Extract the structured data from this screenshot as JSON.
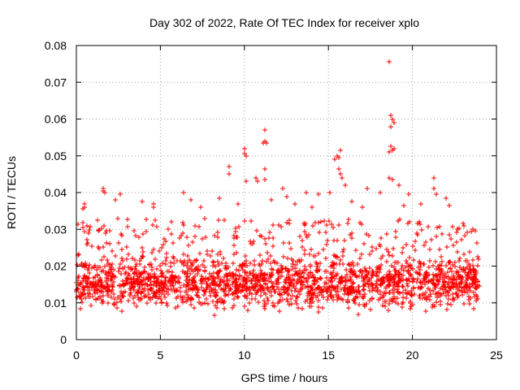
{
  "chart_data": {
    "type": "scatter",
    "title": "Day 302 of 2022, Rate Of TEC Index for receiver xplo",
    "xlabel": "GPS time / hours",
    "ylabel": "ROTI / TECUs",
    "xlim": [
      0,
      25
    ],
    "ylim": [
      0,
      0.08
    ],
    "x_ticks": [
      0,
      5,
      10,
      15,
      20,
      25
    ],
    "y_ticks": [
      0,
      0.01,
      0.02,
      0.03,
      0.04,
      0.05,
      0.06,
      0.07,
      0.08
    ],
    "x_tick_labels": [
      "0",
      "5",
      "10",
      "15",
      "20",
      "25"
    ],
    "y_tick_labels": [
      "0",
      "0.01",
      "0.02",
      "0.03",
      "0.04",
      "0.05",
      "0.06",
      "0.07",
      "0.08"
    ],
    "grid": true,
    "marker": "+",
    "marker_color": "#ff0000",
    "data_extent_x": [
      0,
      24
    ],
    "bulk_range_y": [
      0.006,
      0.025
    ],
    "series": [
      {
        "name": "ROTI",
        "points": [
          [
            18.6,
            0.0755
          ],
          [
            18.7,
            0.061
          ],
          [
            18.8,
            0.06
          ],
          [
            18.9,
            0.059
          ],
          [
            18.7,
            0.058
          ],
          [
            18.7,
            0.0525
          ],
          [
            18.8,
            0.0515
          ],
          [
            18.6,
            0.051
          ],
          [
            18.9,
            0.052
          ],
          [
            11.2,
            0.057
          ],
          [
            11.2,
            0.054
          ],
          [
            11.1,
            0.0535
          ],
          [
            11.3,
            0.0535
          ],
          [
            10.0,
            0.052
          ],
          [
            10.1,
            0.05
          ],
          [
            10.0,
            0.0505
          ],
          [
            11.2,
            0.0465
          ],
          [
            15.5,
            0.05
          ],
          [
            15.6,
            0.0495
          ],
          [
            15.4,
            0.049
          ],
          [
            15.7,
            0.0515
          ],
          [
            15.6,
            0.0465
          ],
          [
            15.7,
            0.045
          ],
          [
            15.8,
            0.044
          ],
          [
            9.1,
            0.047
          ],
          [
            9.1,
            0.045
          ],
          [
            10.7,
            0.044
          ],
          [
            10.8,
            0.043
          ],
          [
            10.1,
            0.043
          ],
          [
            11.2,
            0.0435
          ],
          [
            18.6,
            0.044
          ],
          [
            18.8,
            0.0435
          ],
          [
            19.2,
            0.042
          ],
          [
            21.3,
            0.044
          ],
          [
            1.6,
            0.041
          ],
          [
            1.6,
            0.0405
          ],
          [
            1.7,
            0.04
          ],
          [
            2.6,
            0.0395
          ],
          [
            8.5,
            0.0385
          ],
          [
            12.3,
            0.041
          ],
          [
            12.5,
            0.039
          ],
          [
            13.7,
            0.04
          ],
          [
            14.4,
            0.0395
          ],
          [
            15.1,
            0.04
          ],
          [
            16.0,
            0.042
          ],
          [
            17.3,
            0.041
          ],
          [
            18.1,
            0.04
          ],
          [
            19.8,
            0.0395
          ],
          [
            21.3,
            0.041
          ],
          [
            21.4,
            0.0395
          ],
          [
            0.5,
            0.037
          ],
          [
            0.5,
            0.036
          ],
          [
            0.4,
            0.0355
          ],
          [
            2.3,
            0.038
          ],
          [
            3.9,
            0.0375
          ],
          [
            4.6,
            0.037
          ],
          [
            4.6,
            0.036
          ],
          [
            6.4,
            0.04
          ],
          [
            6.8,
            0.038
          ],
          [
            7.4,
            0.036
          ],
          [
            9.6,
            0.037
          ],
          [
            11.6,
            0.038
          ],
          [
            13.0,
            0.037
          ],
          [
            14.0,
            0.036
          ],
          [
            16.4,
            0.0375
          ],
          [
            17.0,
            0.036
          ],
          [
            19.5,
            0.0365
          ],
          [
            20.5,
            0.037
          ],
          [
            22.0,
            0.0385
          ],
          [
            22.2,
            0.0365
          ],
          [
            23.6,
            0.03
          ],
          [
            23.5,
            0.0295
          ],
          [
            23.0,
            0.0315
          ],
          [
            22.7,
            0.03
          ],
          [
            0.5,
            0.0295
          ],
          [
            0.4,
            0.0305
          ],
          [
            0.1,
            0.023
          ]
        ]
      }
    ]
  }
}
